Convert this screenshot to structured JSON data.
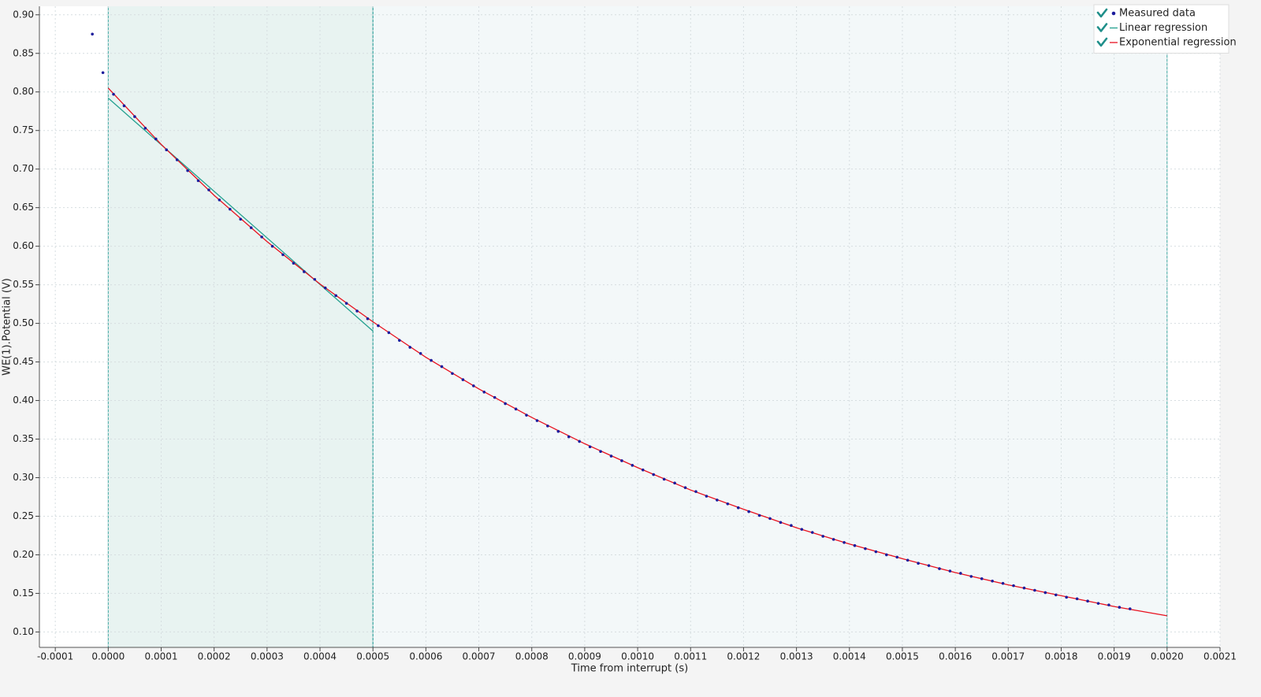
{
  "chart_data": {
    "type": "scatter",
    "x_label": "Time from interrupt (s)",
    "y_label": "WE(1).Potential (V)",
    "xlim": [
      -0.00013,
      0.0021
    ],
    "ylim": [
      0.08,
      0.911
    ],
    "xticks": [
      -0.0001,
      {
        "value": 0,
        "label": "0.0000"
      },
      0.0001,
      0.0002,
      0.0003,
      0.0004,
      0.0005,
      0.0006,
      0.0007,
      0.0008,
      0.0009,
      {
        "value": 0.001,
        "label": "0.0010"
      },
      0.0011,
      0.0012,
      0.0013,
      0.0014,
      0.0015,
      0.0016,
      0.0017,
      0.0018,
      0.0019,
      {
        "value": 0.002,
        "label": "0.0020"
      },
      0.0021
    ],
    "yticks": [
      {
        "value": 0.1,
        "label": "0.10"
      },
      0.15,
      {
        "value": 0.2,
        "label": "0.20"
      },
      0.25,
      {
        "value": 0.3,
        "label": "0.30"
      },
      0.35,
      {
        "value": 0.4,
        "label": "0.40"
      },
      0.45,
      {
        "value": 0.5,
        "label": "0.50"
      },
      0.55,
      {
        "value": 0.6,
        "label": "0.60"
      },
      0.65,
      {
        "value": 0.7,
        "label": "0.70"
      },
      0.75,
      {
        "value": 0.8,
        "label": "0.80"
      },
      0.85,
      {
        "value": 0.9,
        "label": "0.90"
      }
    ],
    "grid": true,
    "legend": "top-right",
    "regions": [
      {
        "start": 0,
        "end": 0.0005,
        "color": "#e8f3f1",
        "edge_color": "#3aa5a0"
      },
      {
        "start": 0.0005,
        "end": 0.002,
        "color": "#f3f8f9",
        "edge_color": "#3aa5a0"
      }
    ],
    "series": [
      {
        "name": "Measured data",
        "mode": "markers",
        "color": "#1c1c9c",
        "x": [
          -3e-05,
          -1e-05,
          1e-05,
          3e-05,
          5e-05,
          7e-05,
          9e-05,
          0.00011,
          0.00013,
          0.00015,
          0.00017,
          0.00019,
          0.00021,
          0.00023,
          0.00025,
          0.00027,
          0.00029,
          0.00031,
          0.00033,
          0.00035,
          0.00037,
          0.00039,
          0.00041,
          0.00043,
          0.00045,
          0.00047,
          0.00049,
          0.00051,
          0.00053,
          0.00055,
          0.00057,
          0.00059,
          0.00061,
          0.00063,
          0.00065,
          0.00067,
          0.00069,
          0.00071,
          0.00073,
          0.00075,
          0.00077,
          0.00079,
          0.00081,
          0.00083,
          0.00085,
          0.00087,
          0.00089,
          0.00091,
          0.00093,
          0.00095,
          0.00097,
          0.00099,
          0.00101,
          0.00103,
          0.00105,
          0.00107,
          0.00109,
          0.00111,
          0.00113,
          0.00115,
          0.00117,
          0.00119,
          0.00121,
          0.00123,
          0.00125,
          0.00127,
          0.00129,
          0.00131,
          0.00133,
          0.00135,
          0.00137,
          0.00139,
          0.00141,
          0.00143,
          0.00145,
          0.00147,
          0.00149,
          0.00151,
          0.00153,
          0.00155,
          0.00157,
          0.00159,
          0.00161,
          0.00163,
          0.00165,
          0.00167,
          0.00169,
          0.00171,
          0.00173,
          0.00175,
          0.00177,
          0.00179,
          0.00181,
          0.00183,
          0.00185,
          0.00187,
          0.00189,
          0.00191,
          0.00193
        ],
        "values": [
          0.875,
          0.825,
          0.797,
          0.782,
          0.768,
          0.753,
          0.739,
          0.725,
          0.712,
          0.698,
          0.685,
          0.673,
          0.66,
          0.648,
          0.635,
          0.624,
          0.612,
          0.6,
          0.589,
          0.578,
          0.567,
          0.557,
          0.546,
          0.536,
          0.526,
          0.516,
          0.506,
          0.497,
          0.488,
          0.478,
          0.469,
          0.461,
          0.452,
          0.444,
          0.435,
          0.427,
          0.419,
          0.411,
          0.404,
          0.396,
          0.389,
          0.381,
          0.374,
          0.367,
          0.36,
          0.353,
          0.347,
          0.34,
          0.334,
          0.328,
          0.322,
          0.316,
          0.31,
          0.304,
          0.298,
          0.293,
          0.287,
          0.282,
          0.276,
          0.271,
          0.266,
          0.261,
          0.256,
          0.251,
          0.247,
          0.242,
          0.238,
          0.233,
          0.229,
          0.224,
          0.22,
          0.216,
          0.212,
          0.208,
          0.204,
          0.2,
          0.197,
          0.193,
          0.189,
          0.186,
          0.182,
          0.179,
          0.176,
          0.172,
          0.169,
          0.166,
          0.163,
          0.16,
          0.157,
          0.154,
          0.151,
          0.148,
          0.145,
          0.143,
          0.14,
          0.137,
          0.135,
          0.132,
          0.13
        ]
      },
      {
        "name": "Linear regression",
        "mode": "lines",
        "color": "#23a08f",
        "x": [
          0,
          0.0005
        ],
        "values": [
          0.792,
          0.49
        ]
      },
      {
        "name": "Exponential regression",
        "mode": "lines",
        "color": "#e8111f",
        "x": [
          0,
          0.0001,
          0.0002,
          0.0003,
          0.0004,
          0.0005,
          0.0006,
          0.0007,
          0.0008,
          0.0009,
          0.001,
          0.0011,
          0.0012,
          0.0013,
          0.0014,
          0.0015,
          0.0016,
          0.0017,
          0.0018,
          0.0019,
          0.002
        ],
        "values": [
          0.805,
          0.732,
          0.666,
          0.606,
          0.551,
          0.502,
          0.456,
          0.415,
          0.378,
          0.344,
          0.313,
          0.284,
          0.259,
          0.235,
          0.214,
          0.195,
          0.177,
          0.161,
          0.147,
          0.133,
          0.121
        ]
      }
    ]
  }
}
